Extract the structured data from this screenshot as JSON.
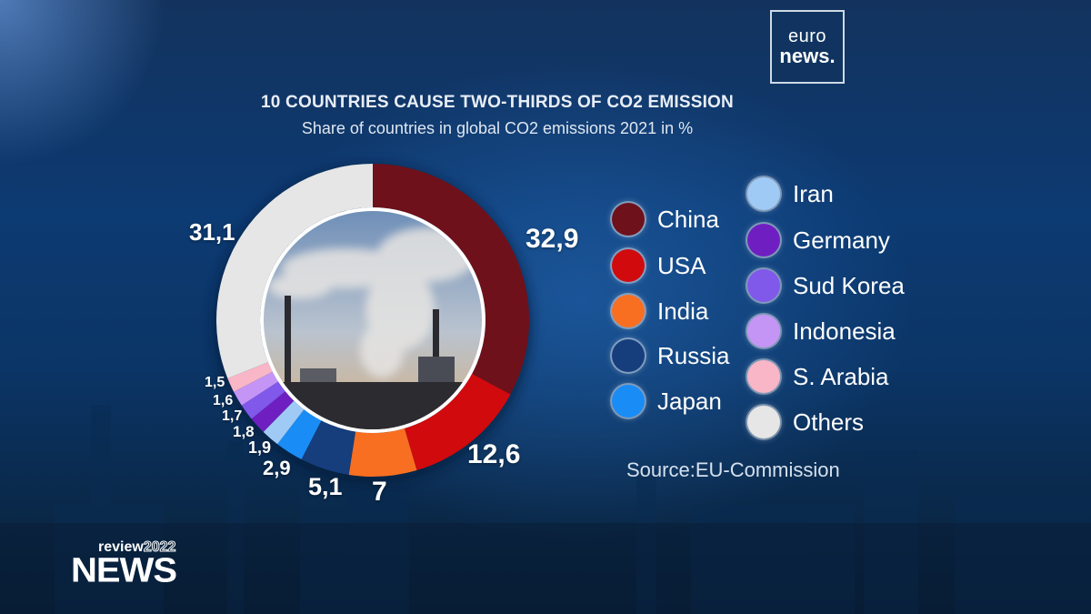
{
  "brand": {
    "logo_line1": "euro",
    "logo_line2": "news.",
    "show_review": "review",
    "show_year": "2022",
    "show_name": "NEWS"
  },
  "header": {
    "title": "10 COUNTRIES CAUSE TWO-THIRDS OF CO2 EMISSION",
    "subtitle": "Share of countries in global CO2 emissions 2021 in %"
  },
  "source": "Source:EU-Commission",
  "chart_data": {
    "type": "pie",
    "variant": "donut",
    "title": "10 COUNTRIES CAUSE TWO-THIRDS OF CO2 EMISSION",
    "subtitle": "Share of countries in global CO2 emissions 2021 in %",
    "unit": "%",
    "source": "Source:EU-Commission",
    "categories": [
      "China",
      "USA",
      "India",
      "Russia",
      "Japan",
      "Iran",
      "Germany",
      "Sud Korea",
      "Indonesia",
      "S. Arabia",
      "Others"
    ],
    "values": [
      32.9,
      12.6,
      7,
      5.1,
      2.9,
      1.9,
      1.8,
      1.7,
      1.6,
      1.5,
      31.1
    ],
    "value_labels": [
      "32,9",
      "12,6",
      "7",
      "5,1",
      "2,9",
      "1,9",
      "1,8",
      "1,7",
      "1,6",
      "1,5",
      "31,1"
    ],
    "colors": [
      "#6e111b",
      "#d10a0e",
      "#f86f22",
      "#163d7c",
      "#1a8cf5",
      "#9fcaf5",
      "#6f1fc1",
      "#8058ea",
      "#c595f5",
      "#f9b6c6",
      "#e6e6e6"
    ],
    "legend_position": "right",
    "start_angle": "top, clockwise",
    "center_image": "power plant smokestacks"
  },
  "legend": {
    "col1": [
      {
        "label": "China",
        "color": "#6e111b"
      },
      {
        "label": "USA",
        "color": "#d10a0e"
      },
      {
        "label": "India",
        "color": "#f86f22"
      },
      {
        "label": "Russia",
        "color": "#163d7c"
      },
      {
        "label": "Japan",
        "color": "#1a8cf5"
      }
    ],
    "col2": [
      {
        "label": "Iran",
        "color": "#9fcaf5"
      },
      {
        "label": "Germany",
        "color": "#6f1fc1"
      },
      {
        "label": "Sud Korea",
        "color": "#8058ea"
      },
      {
        "label": "Indonesia",
        "color": "#c595f5"
      },
      {
        "label": "S. Arabia",
        "color": "#f9b6c6"
      },
      {
        "label": "Others",
        "color": "#e6e6e6"
      }
    ]
  }
}
